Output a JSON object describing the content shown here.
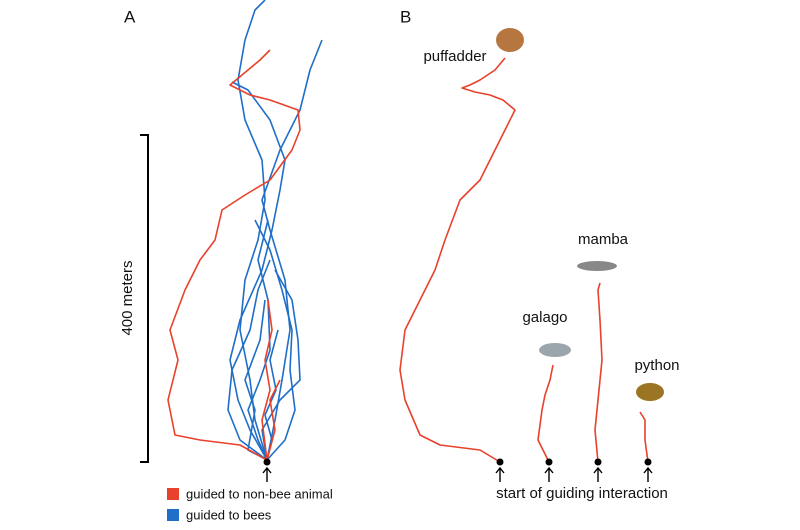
{
  "panel_a": {
    "label": "A",
    "scale_label": "400 meters"
  },
  "panel_b": {
    "label": "B",
    "animals": [
      "puffadder",
      "mamba",
      "galago",
      "python"
    ],
    "origin_label": "start of guiding interaction"
  },
  "legend": {
    "items": [
      "guided to non-bee animal",
      "guided to bees"
    ]
  }
}
